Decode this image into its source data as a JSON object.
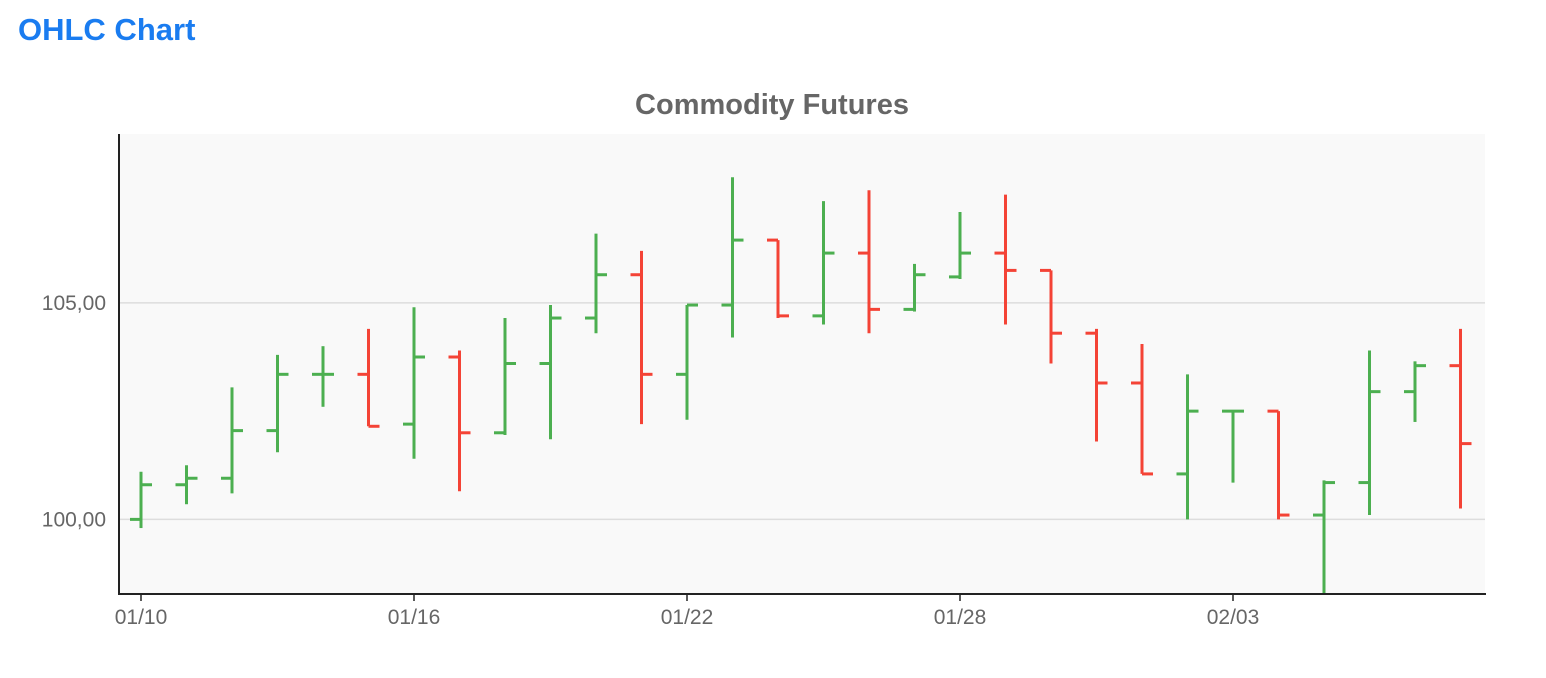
{
  "header": {
    "title": "OHLC Chart"
  },
  "colors": {
    "up": "#4caf50",
    "down": "#f44336",
    "header": "#1a7cf0",
    "plot_bg": "#f9f9f9",
    "grid": "#dddddd",
    "axis": "#222222",
    "text": "#666666"
  },
  "chart_data": {
    "type": "ohlc",
    "title": "Commodity Futures",
    "xlabel": "",
    "ylabel": "",
    "grid": true,
    "legend": false,
    "ylim": [
      98.3,
      108.9
    ],
    "y_ticks": [
      100,
      105
    ],
    "y_tick_labels": [
      "100,00",
      "105,00"
    ],
    "x_tick_labels": [
      "01/10",
      "01/16",
      "01/22",
      "01/28",
      "02/03"
    ],
    "x_tick_dates": [
      "01/10",
      "01/16",
      "01/22",
      "01/28",
      "02/03"
    ],
    "bars": [
      {
        "date": "01/10",
        "open": 100.0,
        "high": 101.1,
        "low": 99.8,
        "close": 100.8
      },
      {
        "date": "01/11",
        "open": 100.8,
        "high": 101.25,
        "low": 100.35,
        "close": 100.95
      },
      {
        "date": "01/12",
        "open": 100.95,
        "high": 103.05,
        "low": 100.6,
        "close": 102.05
      },
      {
        "date": "01/13",
        "open": 102.05,
        "high": 103.8,
        "low": 101.55,
        "close": 103.35
      },
      {
        "date": "01/14",
        "open": 103.35,
        "high": 104.0,
        "low": 102.6,
        "close": 103.35
      },
      {
        "date": "01/15",
        "open": 103.35,
        "high": 104.4,
        "low": 102.15,
        "close": 102.15
      },
      {
        "date": "01/16",
        "open": 102.2,
        "high": 104.9,
        "low": 101.4,
        "close": 103.75
      },
      {
        "date": "01/17",
        "open": 103.75,
        "high": 103.9,
        "low": 100.65,
        "close": 102.0
      },
      {
        "date": "01/18",
        "open": 102.0,
        "high": 104.65,
        "low": 101.95,
        "close": 103.6
      },
      {
        "date": "01/19",
        "open": 103.6,
        "high": 104.95,
        "low": 101.85,
        "close": 104.65
      },
      {
        "date": "01/20",
        "open": 104.65,
        "high": 106.6,
        "low": 104.3,
        "close": 105.65
      },
      {
        "date": "01/21",
        "open": 105.65,
        "high": 106.2,
        "low": 102.2,
        "close": 103.35
      },
      {
        "date": "01/22",
        "open": 103.35,
        "high": 104.95,
        "low": 102.3,
        "close": 104.95
      },
      {
        "date": "01/23",
        "open": 104.95,
        "high": 107.9,
        "low": 104.2,
        "close": 106.45
      },
      {
        "date": "01/24",
        "open": 106.45,
        "high": 106.45,
        "low": 104.65,
        "close": 104.7
      },
      {
        "date": "01/25",
        "open": 104.7,
        "high": 107.35,
        "low": 104.5,
        "close": 106.15
      },
      {
        "date": "01/26",
        "open": 106.15,
        "high": 107.6,
        "low": 104.3,
        "close": 104.85
      },
      {
        "date": "01/27",
        "open": 104.85,
        "high": 105.9,
        "low": 104.8,
        "close": 105.65
      },
      {
        "date": "01/28",
        "open": 105.6,
        "high": 107.1,
        "low": 105.55,
        "close": 106.15
      },
      {
        "date": "01/29",
        "open": 106.15,
        "high": 107.5,
        "low": 104.5,
        "close": 105.75
      },
      {
        "date": "01/30",
        "open": 105.75,
        "high": 105.75,
        "low": 103.6,
        "close": 104.3
      },
      {
        "date": "01/31",
        "open": 104.3,
        "high": 104.4,
        "low": 101.8,
        "close": 103.15
      },
      {
        "date": "02/01",
        "open": 103.15,
        "high": 104.05,
        "low": 101.05,
        "close": 101.05
      },
      {
        "date": "02/02",
        "open": 101.05,
        "high": 103.35,
        "low": 100.0,
        "close": 102.5
      },
      {
        "date": "02/03",
        "open": 102.5,
        "high": 102.5,
        "low": 100.85,
        "close": 102.5
      },
      {
        "date": "02/04",
        "open": 102.5,
        "high": 102.5,
        "low": 100.0,
        "close": 100.1
      },
      {
        "date": "02/05",
        "open": 100.1,
        "high": 100.9,
        "low": 98.3,
        "close": 100.85
      },
      {
        "date": "02/06",
        "open": 100.85,
        "high": 103.9,
        "low": 100.1,
        "close": 102.95
      },
      {
        "date": "02/07",
        "open": 102.95,
        "high": 103.65,
        "low": 102.25,
        "close": 103.55
      },
      {
        "date": "02/08",
        "open": 103.55,
        "high": 104.4,
        "low": 100.25,
        "close": 101.75
      }
    ]
  }
}
